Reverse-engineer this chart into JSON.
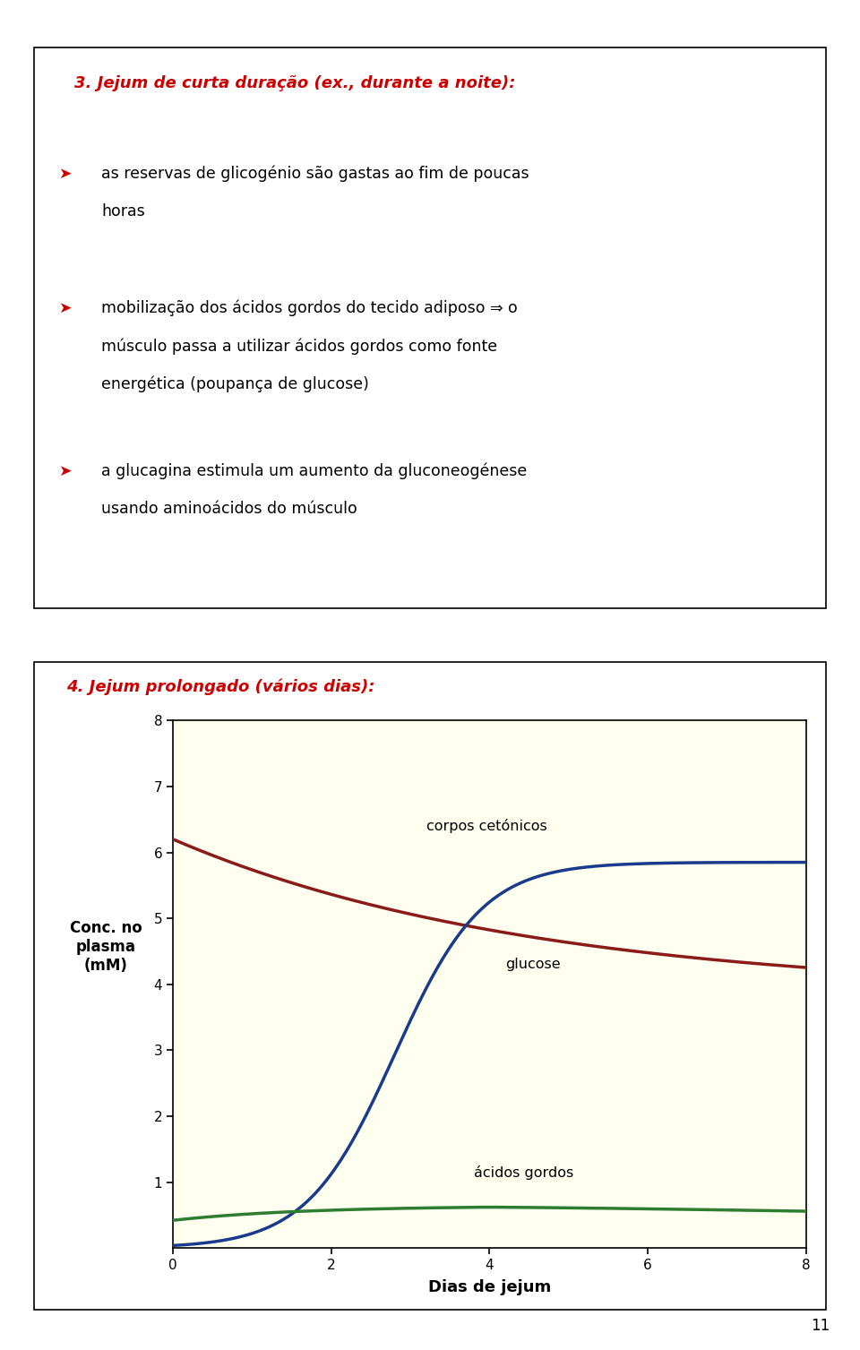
{
  "page_bg": "#ffffff",
  "box1": {
    "title": "3. Jejum de curta duração (ex., durante a noite):",
    "title_color": "#cc0000",
    "box_edge_color": "#000000",
    "box_bg": "#ffffff",
    "bullet_arrow_color": "#cc0000",
    "bullet_text_color": "#000000",
    "bullet1_line1": "as reservas de glicogénio são gastas ao fim de poucas",
    "bullet1_line2": "horas",
    "bullet2_line1": "mobilização dos ácidos gordos do tecido adiposo ⇒ o",
    "bullet2_line2": "músculo passa a utilizar ácidos gordos como fonte",
    "bullet2_line3": "energética (poupança de glucose)",
    "bullet3_line1": "a glucagina estimula um aumento da gluconeogénese",
    "bullet3_line2": "usando aminoácidos do músculo"
  },
  "box2": {
    "title": "4. Jejum prolongado (vários dias):",
    "title_color": "#cc0000",
    "plot_bg": "#fffff0",
    "xlabel": "Dias de jejum",
    "ylabel_line1": "Conc. no",
    "ylabel_line2": "plasma",
    "ylabel_line3": "(mM)",
    "xlim": [
      0,
      8
    ],
    "ylim": [
      0,
      8
    ],
    "xticks": [
      0,
      2,
      4,
      6,
      8
    ],
    "yticks": [
      1,
      2,
      3,
      4,
      5,
      6,
      7,
      8
    ],
    "glucose_color": "#8b1a1a",
    "ketone_color": "#1a3a8b",
    "fatty_color": "#2e7d32",
    "glucose_label": "glucose",
    "ketone_label": "corpos cetónicos",
    "fatty_label": "ácidos gordos",
    "box_edge_color": "#000000"
  },
  "page_number": "11"
}
